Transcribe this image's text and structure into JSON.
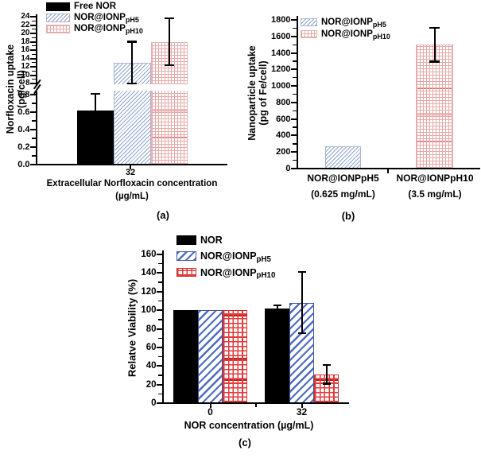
{
  "colors": {
    "black": "#000000",
    "light_blue_hatch": "#8fa3cc",
    "light_red_hatch": "#e8a8a8",
    "strong_blue_hatch": "#4f6bbd",
    "strong_red_hatch": "#e23b3b"
  },
  "panels": {
    "a": {
      "panel_label": "(a)",
      "legend": [
        {
          "name": "Free NOR",
          "sub": ""
        },
        {
          "name": "NOR@IONP",
          "sub": "pH5"
        },
        {
          "name": "NOR@IONP",
          "sub": "pH10"
        }
      ],
      "y_axis_title_line1": "Norfloxacin uptake",
      "y_axis_title_line2": "(pg/cell)",
      "x_axis_title_line1": "Extracellular Norfloxacin concentration",
      "x_axis_title_line2": "(µg/mL)",
      "x_tick_label": "32"
    },
    "b": {
      "panel_label": "(b)",
      "legend": [
        {
          "name": "NOR@IONP",
          "sub": "pH5"
        },
        {
          "name": "NOR@IONP",
          "sub": "pH10"
        }
      ],
      "y_axis_title_line1": "Nanoparticle uptake",
      "y_axis_title_line2": "(pg of Fe/cell)",
      "categories": [
        {
          "line1": "NOR@IONPpH5",
          "line2": "(0.625 mg/mL)"
        },
        {
          "line1": "NOR@IONPpH10",
          "line2": "(3.5 mg/mL)"
        }
      ]
    },
    "c": {
      "panel_label": "(c)",
      "legend": [
        {
          "name": "NOR",
          "sub": ""
        },
        {
          "name": "NOR@IONP",
          "sub": "pH5"
        },
        {
          "name": "NOR@IONP",
          "sub": "pH10"
        }
      ],
      "y_axis_title": "Relatve Viability (%)",
      "x_axis_title": "NOR concentration (µg/mL)",
      "x_tick_labels": [
        "0",
        "32"
      ]
    }
  },
  "chart_data": [
    {
      "id": "a",
      "type": "bar",
      "title": "",
      "xlabel": "Extracellular Norfloxacin concentration (µg/mL)",
      "ylabel": "Norfloxacin uptake (pg/cell)",
      "categories": [
        "32"
      ],
      "series": [
        {
          "name": "Free NOR",
          "values": [
            0.62
          ],
          "errors": [
            0.19
          ]
        },
        {
          "name": "NOR@IONPpH5",
          "values": [
            13
          ],
          "errors": [
            5
          ]
        },
        {
          "name": "NOR@IONPpH10",
          "values": [
            18
          ],
          "errors": [
            5.6
          ]
        }
      ],
      "y_axis_break": true,
      "y_upper_ticks": [
        24,
        22,
        20,
        18,
        16,
        14,
        12,
        10,
        8
      ],
      "y_lower_ticks": [
        0.8,
        0.6,
        0.4,
        0.2,
        0
      ],
      "y_upper_range": [
        7.4,
        24.5
      ],
      "y_lower_range": [
        0,
        0.86
      ],
      "legend_position": "top-left",
      "grid": false
    },
    {
      "id": "b",
      "type": "bar",
      "title": "",
      "xlabel": "",
      "ylabel": "Nanoparticle uptake (pg of Fe/cell)",
      "categories": [
        "NOR@IONPpH5 (0.625 mg/mL)",
        "NOR@IONPpH10 (3.5 mg/mL)"
      ],
      "series": [
        {
          "name": "NOR@IONPpH5",
          "values": [
            270,
            null
          ],
          "errors": [
            null,
            null
          ]
        },
        {
          "name": "NOR@IONPpH10",
          "values": [
            null,
            1500
          ],
          "errors": [
            null,
            205
          ]
        }
      ],
      "ylim": [
        0,
        1800
      ],
      "ytick_step": 200,
      "legend_position": "top-left",
      "grid": false
    },
    {
      "id": "c",
      "type": "bar",
      "title": "",
      "xlabel": "NOR concentration (µg/mL)",
      "ylabel": "Relatve Viability (%)",
      "categories": [
        "0",
        "32"
      ],
      "series": [
        {
          "name": "NOR",
          "values": [
            100,
            102
          ],
          "errors": [
            0,
            3
          ]
        },
        {
          "name": "NOR@IONPpH5",
          "values": [
            100,
            108
          ],
          "errors": [
            0,
            33
          ]
        },
        {
          "name": "NOR@IONPpH10",
          "values": [
            100,
            31
          ],
          "errors": [
            0,
            10
          ]
        }
      ],
      "ylim": [
        0,
        160
      ],
      "ytick_step": 20,
      "legend_position": "top-left",
      "grid": false
    }
  ]
}
